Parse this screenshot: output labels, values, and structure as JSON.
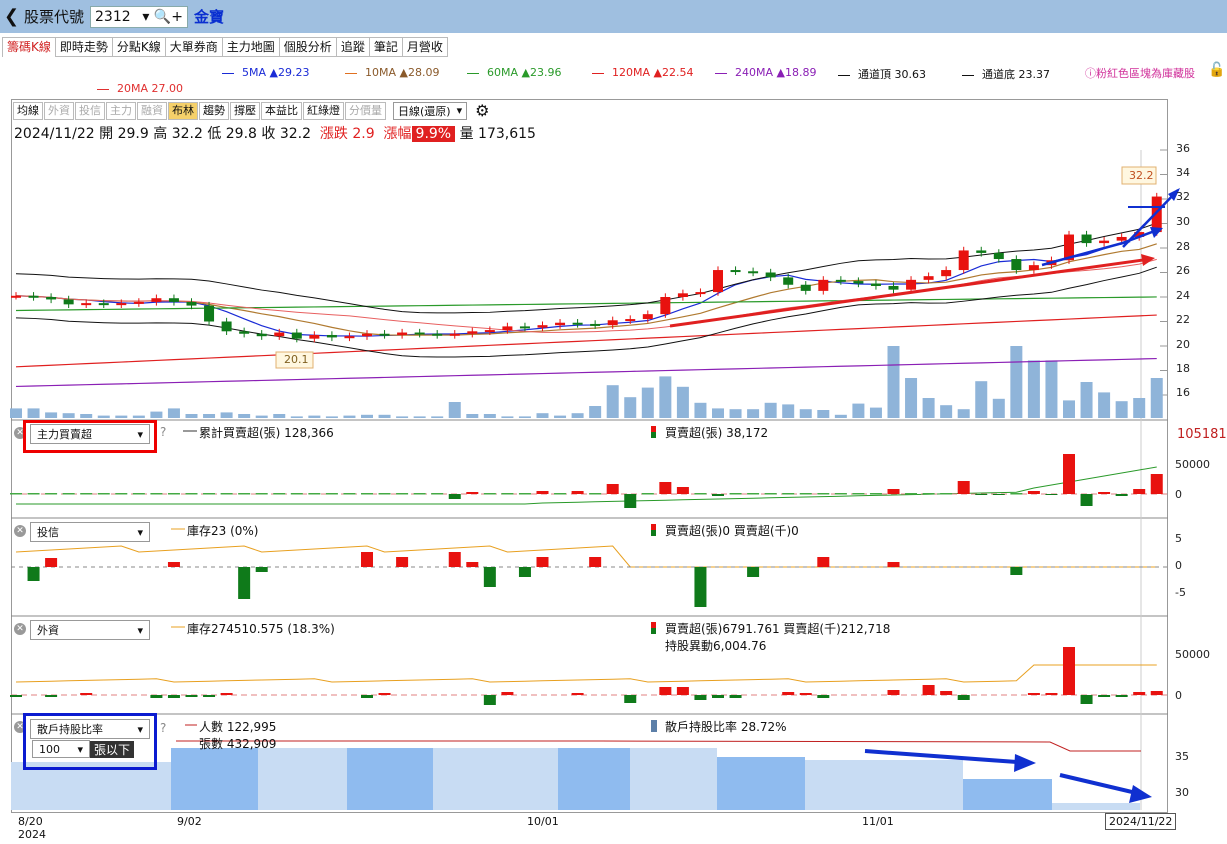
{
  "header": {
    "back": "❮",
    "stock_label": "股票代號",
    "stock_code": "2312",
    "company": "金寶"
  },
  "tabs": [
    "籌碼K線",
    "即時走勢",
    "分點K線",
    "大單券商",
    "主力地圖",
    "個股分析",
    "追蹤",
    "筆記",
    "月營收"
  ],
  "ma_legend": {
    "ma5": "5MA ▲29.23",
    "ma10": "10MA ▲28.09",
    "ma60": "60MA ▲23.96",
    "ma120": "120MA ▲22.54",
    "ma240": "240MA ▲18.89",
    "top": "通道頂 30.63",
    "bottom": "通道底 23.37",
    "ma20": "20MA 27.00",
    "note": "粉紅色區塊為庫藏股"
  },
  "colors": {
    "up": "#e8120f",
    "down": "#0f7a1a",
    "ma5": "#1a2bd6",
    "ma10": "#8a5a2b",
    "ma20": "#e03030",
    "ma60": "#2a9a2a",
    "ma120": "#e02020",
    "ma240": "#8a1fb5",
    "volume": "#8fb4d9"
  },
  "toolbar": [
    "均線",
    "外資",
    "投信",
    "主力",
    "融資",
    "布林",
    "趨勢",
    "撐壓",
    "本益比",
    "紅綠燈",
    "分價量"
  ],
  "period": "日線(還原)",
  "info": {
    "date": "2024/11/22",
    "open_label": "開",
    "open": "29.9",
    "high_label": "高",
    "high": "32.2",
    "low_label": "低",
    "low": "29.8",
    "close_label": "收",
    "close": "32.2",
    "chg_label": "漲跌",
    "chg": "2.9",
    "pct_label": "漲幅",
    "pct": "9.9%",
    "vol_label": "量",
    "vol": "173,615"
  },
  "price_axis": [
    "36",
    "34",
    "32",
    "30",
    "28",
    "26",
    "24",
    "22",
    "20",
    "18",
    "16"
  ],
  "labels": {
    "high_mark": "32.2",
    "low_mark": "20.1"
  },
  "panel1": {
    "select": "主力買賣超",
    "cum": "累計買賣超(張) 128,366",
    "daily": "買賣超(張) 38,172",
    "axis_top": "105181",
    "axis": [
      "50000",
      "0"
    ]
  },
  "panel2": {
    "select": "投信",
    "inv": "庫存23 (0%)",
    "daily": "買賣超(張)0 買賣超(千)0",
    "axis": [
      "5",
      "0",
      "-5"
    ]
  },
  "panel3": {
    "select": "外資",
    "inv": "庫存274510.575 (18.3%)",
    "daily": "買賣超(張)6791.761 買賣超(千)212,718",
    "hold": "持股異動6,004.76",
    "axis": [
      "50000",
      "0"
    ]
  },
  "panel4": {
    "select": "散戶持股比率",
    "count": "人數 122,995",
    "shares": "張數 432,909",
    "ratio": "散戶持股比率 28.72%",
    "min_sel": "100",
    "min_label": "張以下",
    "axis": [
      "35",
      "30"
    ]
  },
  "dates": {
    "d1": "8/20",
    "y1": "2024",
    "d2": "9/02",
    "d3": "10/01",
    "d4": "11/01",
    "last": "2024/11/22"
  },
  "qmark": "?"
}
